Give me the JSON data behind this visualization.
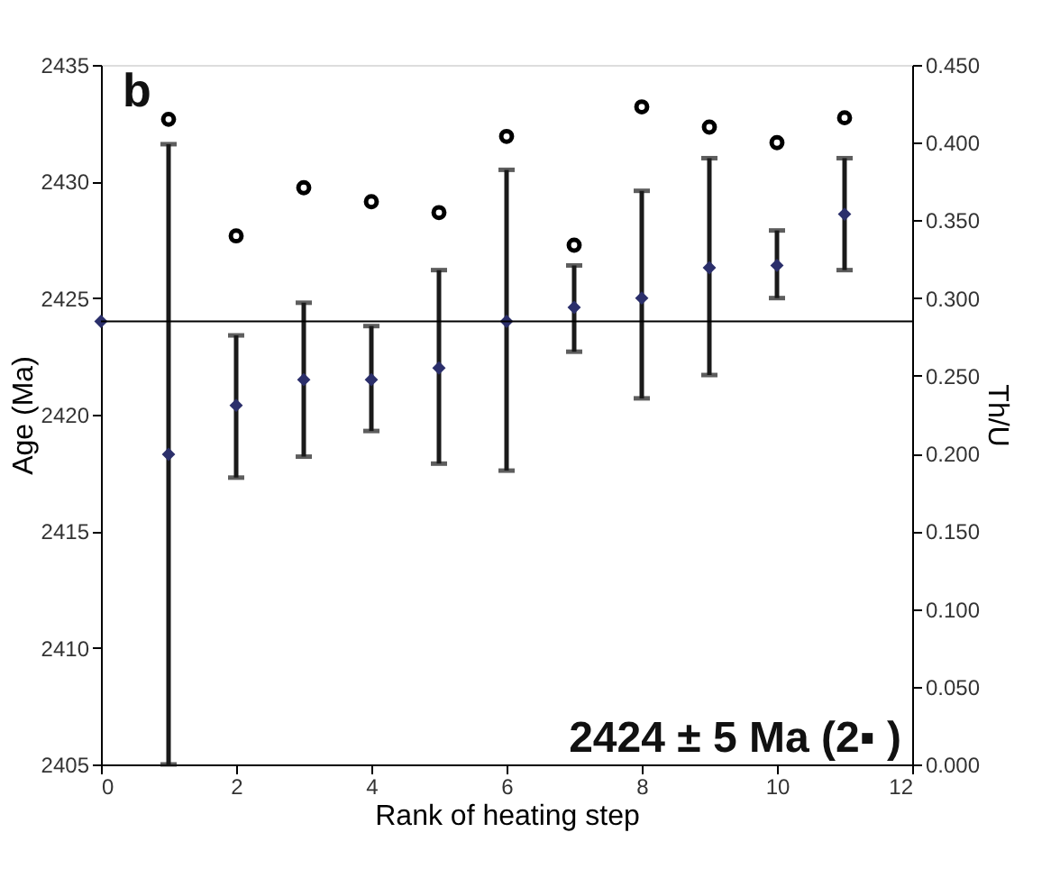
{
  "chart_data": {
    "type": "scatter",
    "xlabel": "Rank of heating step",
    "ylabel": "Age (Ma)",
    "y2label": "Th/U",
    "x": [
      0,
      1,
      2,
      3,
      4,
      5,
      6,
      7,
      8,
      9,
      10,
      11
    ],
    "series": [
      {
        "marker": "diamond",
        "color": "#2b2f6b",
        "values": [
          2424,
          2418.3,
          2420.4,
          2421.5,
          2421.5,
          2422.0,
          2424.0,
          2424.6,
          2425.0,
          2426.3,
          2426.4,
          2428.6
        ],
        "errors": [
          null,
          [
            2405,
            2431.6
          ],
          [
            2417.3,
            2423.4
          ],
          [
            2418.2,
            2424.8
          ],
          [
            2419.3,
            2423.8
          ],
          [
            2417.9,
            2426.2
          ],
          [
            2417.6,
            2430.5
          ],
          [
            2422.7,
            2426.4
          ],
          [
            2420.7,
            2429.6
          ],
          [
            2421.7,
            2431.0
          ],
          [
            2425.0,
            2427.9
          ],
          [
            2426.2,
            2431.0
          ]
        ]
      },
      {
        "marker": "circle",
        "color": "#000000",
        "axis": "y2",
        "x": [
          1,
          2,
          3,
          4,
          5,
          6,
          7,
          8,
          9,
          10,
          11
        ],
        "values": [
          0.415,
          0.34,
          0.371,
          0.362,
          0.355,
          0.404,
          0.334,
          0.423,
          0.41,
          0.4,
          0.416
        ]
      }
    ],
    "xlim": [
      0,
      12
    ],
    "xticks": [
      0,
      2,
      4,
      6,
      8,
      10,
      12
    ],
    "ylim": [
      2405,
      2435
    ],
    "yticks": [
      2405,
      2410,
      2415,
      2420,
      2425,
      2430,
      2435
    ],
    "y2lim": [
      0,
      0.45
    ],
    "y2ticks": [
      {
        "value": 0,
        "label": "0.000"
      },
      {
        "value": 0.05,
        "label": "0.050"
      },
      {
        "value": 0.1,
        "label": "0.100"
      },
      {
        "value": 0.15,
        "label": "0.150"
      },
      {
        "value": 0.2,
        "label": "0.200"
      },
      {
        "value": 0.25,
        "label": "0.250"
      },
      {
        "value": 0.3,
        "label": "0.300"
      },
      {
        "value": 0.35,
        "label": "0.350"
      },
      {
        "value": 0.4,
        "label": "0.400"
      },
      {
        "value": 0.45,
        "label": "0.450"
      }
    ],
    "ref_lines": [
      {
        "axis": "y",
        "value": 2424,
        "color": "#000000"
      }
    ],
    "annotations": [
      "b",
      "2424 ± 5 Ma (2▪ )"
    ],
    "grid": false,
    "legend": false
  }
}
